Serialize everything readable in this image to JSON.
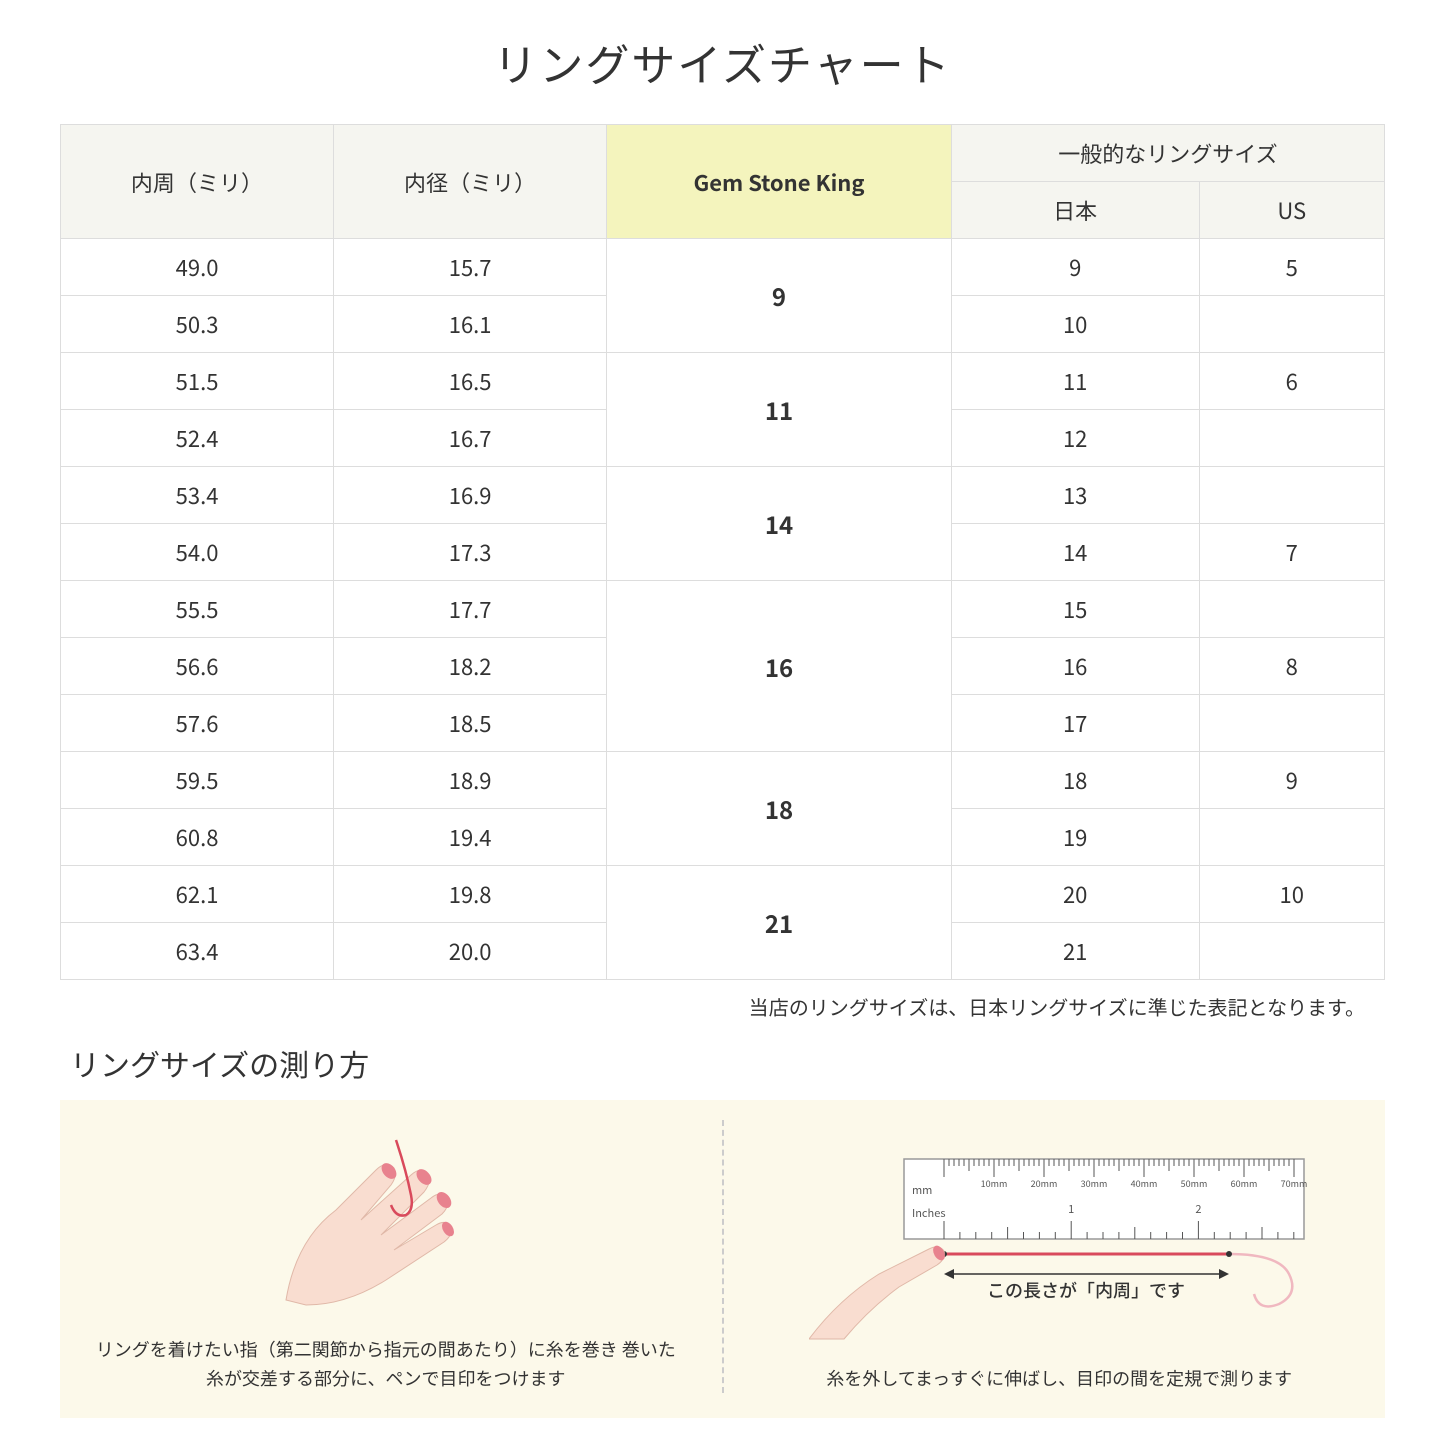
{
  "title": "リングサイズチャート",
  "headers": {
    "circumference": "内周（ミリ）",
    "diameter": "内径（ミリ）",
    "gsk": "Gem Stone King",
    "general": "一般的なリングサイズ",
    "japan": "日本",
    "us": "US"
  },
  "rows": [
    {
      "circ": "49.0",
      "diam": "15.7",
      "gsk": "9",
      "gsk_span": 2,
      "jp": "9",
      "us": "5"
    },
    {
      "circ": "50.3",
      "diam": "16.1",
      "jp": "10",
      "us": ""
    },
    {
      "circ": "51.5",
      "diam": "16.5",
      "gsk": "11",
      "gsk_span": 2,
      "jp": "11",
      "us": "6"
    },
    {
      "circ": "52.4",
      "diam": "16.7",
      "jp": "12",
      "us": ""
    },
    {
      "circ": "53.4",
      "diam": "16.9",
      "gsk": "14",
      "gsk_span": 2,
      "jp": "13",
      "us": ""
    },
    {
      "circ": "54.0",
      "diam": "17.3",
      "jp": "14",
      "us": "7"
    },
    {
      "circ": "55.5",
      "diam": "17.7",
      "gsk": "16",
      "gsk_span": 3,
      "jp": "15",
      "us": ""
    },
    {
      "circ": "56.6",
      "diam": "18.2",
      "jp": "16",
      "us": "8"
    },
    {
      "circ": "57.6",
      "diam": "18.5",
      "jp": "17",
      "us": ""
    },
    {
      "circ": "59.5",
      "diam": "18.9",
      "gsk": "18",
      "gsk_span": 2,
      "jp": "18",
      "us": "9"
    },
    {
      "circ": "60.8",
      "diam": "19.4",
      "jp": "19",
      "us": ""
    },
    {
      "circ": "62.1",
      "diam": "19.8",
      "gsk": "21",
      "gsk_span": 2,
      "jp": "20",
      "us": "10"
    },
    {
      "circ": "63.4",
      "diam": "20.0",
      "jp": "21",
      "us": ""
    }
  ],
  "note": "当店のリングサイズは、日本リングサイズに準じた表記となります。",
  "measure_title": "リングサイズの測り方",
  "panel1_text": "リングを着けたい指（第二関節から指元の間あたり）に糸を巻き\n巻いた糸が交差する部分に、ペンで目印をつけます",
  "panel2_caption": "この長さが「内周」です",
  "panel2_text": "糸を外してまっすぐに伸ばし、目印の間を定規で測ります",
  "ruler": {
    "mm_label": "mm",
    "inches_label": "Inches",
    "mm_ticks": [
      "10mm",
      "20mm",
      "30mm",
      "40mm",
      "50mm",
      "60mm",
      "70mm"
    ],
    "inch_ticks": [
      "1",
      "2"
    ]
  },
  "colors": {
    "header_bg": "#f5f5f0",
    "gsk_bg": "#f4f4bd",
    "border": "#dddddd",
    "instruction_bg": "#fcf9ea",
    "skin": "#f9ddd0",
    "nail": "#e8828e",
    "thread": "#d94a5c",
    "ruler_body": "#ffffff",
    "ruler_border": "#999999"
  }
}
